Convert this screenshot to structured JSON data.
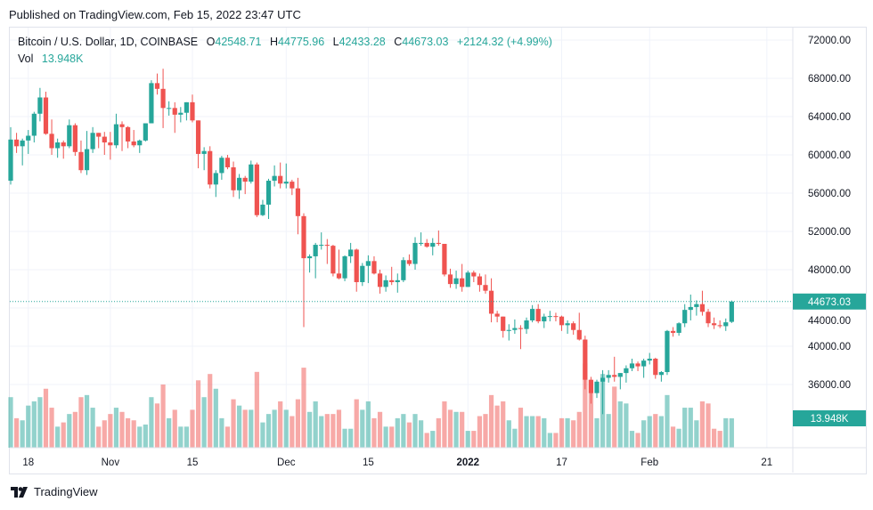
{
  "header": {
    "published": "Published on TradingView.com, Feb 15, 2022 23:47 UTC"
  },
  "legend": {
    "symbol": "Bitcoin / U.S. Dollar, 1D, COINBASE",
    "o_label": "O",
    "o": "42548.71",
    "h_label": "H",
    "h": "44775.96",
    "l_label": "L",
    "l": "42433.28",
    "c_label": "C",
    "c": "44673.03",
    "change": "+2124.32 (+4.99%)",
    "vol_label": "Vol",
    "vol": "13.948K"
  },
  "footer": {
    "brand": "TradingView"
  },
  "colors": {
    "up": "#26a69a",
    "down": "#ef5350",
    "grid": "#f0f3fa",
    "text": "#131722"
  },
  "chart_data": {
    "type": "candlestick",
    "title": "Bitcoin / U.S. Dollar, 1D, COINBASE",
    "start_date": "2021-10-15",
    "price_unit": "USD thousands",
    "volume_unit": "K",
    "columns": [
      "open",
      "high",
      "low",
      "close",
      "volume"
    ],
    "ylim": [
      30.5,
      74.5
    ],
    "y_ticks": [
      "72000.00",
      "68000.00",
      "64000.00",
      "60000.00",
      "56000.00",
      "52000.00",
      "48000.00",
      "44000.00",
      "40000.00",
      "36000.00"
    ],
    "x_ticks": [
      {
        "label": "18",
        "day": 3
      },
      {
        "label": "Nov",
        "day": 17
      },
      {
        "label": "15",
        "day": 31
      },
      {
        "label": "Dec",
        "day": 47
      },
      {
        "label": "15",
        "day": 61
      },
      {
        "label": "2022",
        "day": 78
      },
      {
        "label": "17",
        "day": 94
      },
      {
        "label": "Feb",
        "day": 109
      },
      {
        "label": "21",
        "day": 129
      }
    ],
    "last_price_label": "44673.03",
    "last_volume_label": "13.948K",
    "candles": [
      [
        57.3,
        62.9,
        56.9,
        61.6,
        24
      ],
      [
        61.6,
        62.3,
        60.2,
        60.9,
        14
      ],
      [
        60.9,
        61.7,
        58.9,
        61.5,
        13
      ],
      [
        61.5,
        62.6,
        60.1,
        62.0,
        20
      ],
      [
        62.0,
        64.5,
        61.3,
        64.3,
        22
      ],
      [
        64.3,
        67.0,
        63.5,
        66.0,
        24
      ],
      [
        66.0,
        66.6,
        62.1,
        62.2,
        28
      ],
      [
        62.2,
        63.7,
        60.0,
        60.7,
        19
      ],
      [
        60.7,
        61.7,
        59.7,
        61.3,
        10
      ],
      [
        61.3,
        61.5,
        59.6,
        60.9,
        12
      ],
      [
        60.9,
        63.7,
        60.7,
        63.1,
        16
      ],
      [
        63.1,
        63.3,
        59.9,
        60.3,
        17
      ],
      [
        60.3,
        61.5,
        58.1,
        58.4,
        24
      ],
      [
        58.4,
        62.5,
        57.9,
        60.6,
        25
      ],
      [
        60.6,
        62.9,
        60.2,
        62.3,
        19
      ],
      [
        62.3,
        62.3,
        60.7,
        61.9,
        10
      ],
      [
        61.9,
        62.4,
        60.0,
        61.3,
        13
      ],
      [
        61.3,
        62.4,
        59.5,
        61.0,
        16
      ],
      [
        61.0,
        64.3,
        60.7,
        63.2,
        19
      ],
      [
        63.2,
        63.5,
        60.4,
        62.9,
        17
      ],
      [
        62.9,
        63.0,
        60.7,
        61.4,
        14
      ],
      [
        61.4,
        62.6,
        60.8,
        61.0,
        13
      ],
      [
        61.0,
        61.6,
        60.2,
        61.5,
        10
      ],
      [
        61.5,
        63.3,
        61.4,
        63.3,
        11
      ],
      [
        63.3,
        67.8,
        63.3,
        67.5,
        24
      ],
      [
        67.5,
        68.5,
        66.3,
        66.9,
        21
      ],
      [
        66.9,
        69.0,
        62.8,
        64.9,
        30
      ],
      [
        64.9,
        65.6,
        64.1,
        64.9,
        14
      ],
      [
        64.9,
        65.5,
        62.3,
        64.2,
        18
      ],
      [
        64.2,
        65.0,
        63.4,
        64.4,
        10
      ],
      [
        64.4,
        65.5,
        63.6,
        65.5,
        10
      ],
      [
        65.5,
        66.3,
        63.4,
        63.6,
        18
      ],
      [
        63.6,
        63.6,
        58.6,
        60.1,
        32
      ],
      [
        60.1,
        60.8,
        58.4,
        60.4,
        24
      ],
      [
        60.4,
        60.9,
        56.5,
        56.9,
        35
      ],
      [
        56.9,
        58.4,
        55.6,
        58.1,
        28
      ],
      [
        58.1,
        59.9,
        57.4,
        59.7,
        14
      ],
      [
        59.7,
        60.0,
        58.5,
        58.7,
        10
      ],
      [
        58.7,
        59.3,
        55.6,
        56.3,
        23
      ],
      [
        56.3,
        58.0,
        55.4,
        57.6,
        20
      ],
      [
        57.6,
        57.8,
        55.9,
        57.2,
        18
      ],
      [
        57.2,
        59.4,
        57.0,
        59.0,
        18
      ],
      [
        59.0,
        59.2,
        53.5,
        53.7,
        36
      ],
      [
        53.7,
        55.3,
        53.6,
        54.8,
        12
      ],
      [
        54.8,
        57.5,
        53.3,
        57.3,
        16
      ],
      [
        57.3,
        58.9,
        56.7,
        57.8,
        18
      ],
      [
        57.8,
        59.2,
        56.5,
        57.0,
        22
      ],
      [
        57.0,
        59.1,
        56.5,
        57.2,
        18
      ],
      [
        57.2,
        57.4,
        55.8,
        56.5,
        15
      ],
      [
        56.5,
        57.6,
        51.7,
        53.6,
        23
      ],
      [
        53.6,
        53.9,
        42.0,
        49.2,
        38
      ],
      [
        49.2,
        49.6,
        47.7,
        49.4,
        17
      ],
      [
        49.4,
        50.8,
        47.1,
        50.6,
        22
      ],
      [
        50.6,
        51.9,
        50.1,
        50.6,
        15
      ],
      [
        50.6,
        51.2,
        48.6,
        50.5,
        16
      ],
      [
        50.5,
        50.6,
        47.3,
        47.6,
        16
      ],
      [
        47.6,
        50.1,
        47.0,
        47.1,
        18
      ],
      [
        47.1,
        49.5,
        46.8,
        49.4,
        9
      ],
      [
        49.4,
        50.8,
        48.7,
        50.1,
        9
      ],
      [
        50.1,
        50.2,
        45.7,
        46.7,
        23
      ],
      [
        46.7,
        48.7,
        46.3,
        48.4,
        18
      ],
      [
        48.4,
        49.5,
        46.6,
        48.9,
        22
      ],
      [
        48.9,
        49.4,
        47.5,
        47.6,
        14
      ],
      [
        47.6,
        48.0,
        45.5,
        46.2,
        17
      ],
      [
        46.2,
        47.4,
        45.7,
        46.9,
        10
      ],
      [
        46.9,
        48.3,
        46.4,
        46.7,
        10
      ],
      [
        46.7,
        47.6,
        45.6,
        46.9,
        14
      ],
      [
        46.9,
        49.3,
        46.7,
        49.0,
        16
      ],
      [
        49.0,
        49.6,
        48.4,
        48.6,
        12
      ],
      [
        48.6,
        51.4,
        48.0,
        50.8,
        16
      ],
      [
        50.8,
        51.9,
        50.5,
        50.8,
        13
      ],
      [
        50.8,
        51.2,
        50.3,
        50.4,
        7
      ],
      [
        50.4,
        51.3,
        49.5,
        50.8,
        8
      ],
      [
        50.8,
        52.1,
        50.5,
        50.7,
        14
      ],
      [
        50.7,
        50.7,
        47.3,
        47.5,
        22
      ],
      [
        47.5,
        48.1,
        46.1,
        46.5,
        18
      ],
      [
        46.5,
        47.9,
        46.0,
        47.1,
        17
      ],
      [
        47.1,
        48.6,
        45.7,
        46.2,
        17
      ],
      [
        46.2,
        47.9,
        46.2,
        47.7,
        8
      ],
      [
        47.7,
        47.9,
        46.7,
        47.3,
        8
      ],
      [
        47.3,
        47.6,
        45.7,
        46.4,
        15
      ],
      [
        46.4,
        47.5,
        45.5,
        45.8,
        16
      ],
      [
        45.8,
        47.1,
        42.5,
        43.4,
        25
      ],
      [
        43.4,
        43.7,
        42.5,
        43.1,
        20
      ],
      [
        43.1,
        43.1,
        40.9,
        41.6,
        22
      ],
      [
        41.6,
        42.3,
        40.6,
        41.7,
        13
      ],
      [
        41.7,
        42.8,
        41.3,
        41.9,
        9
      ],
      [
        41.9,
        42.2,
        39.7,
        41.8,
        19
      ],
      [
        41.8,
        43.0,
        41.3,
        42.7,
        15
      ],
      [
        42.7,
        44.3,
        42.5,
        43.9,
        15
      ],
      [
        43.9,
        44.4,
        42.4,
        42.6,
        15
      ],
      [
        42.6,
        43.4,
        41.9,
        43.1,
        14
      ],
      [
        43.1,
        43.7,
        42.6,
        43.15,
        7
      ],
      [
        43.15,
        43.5,
        42.6,
        43.1,
        7
      ],
      [
        43.1,
        43.2,
        41.6,
        42.2,
        14
      ],
      [
        42.2,
        42.7,
        41.3,
        42.4,
        14
      ],
      [
        42.4,
        42.6,
        41.2,
        41.7,
        13
      ],
      [
        41.7,
        43.5,
        40.6,
        40.7,
        17
      ],
      [
        40.7,
        41.1,
        35.5,
        36.5,
        40
      ],
      [
        36.5,
        36.8,
        34.0,
        35.1,
        32
      ],
      [
        35.1,
        36.5,
        34.6,
        36.3,
        14
      ],
      [
        36.3,
        37.5,
        32.9,
        36.7,
        35
      ],
      [
        36.7,
        37.5,
        36.2,
        37.0,
        16
      ],
      [
        37.0,
        38.9,
        36.3,
        36.8,
        29
      ],
      [
        36.8,
        37.2,
        35.5,
        37.2,
        22
      ],
      [
        37.2,
        38.0,
        36.2,
        37.7,
        21
      ],
      [
        37.7,
        38.7,
        37.4,
        38.2,
        8
      ],
      [
        38.2,
        38.4,
        37.4,
        37.9,
        7
      ],
      [
        37.9,
        38.7,
        36.7,
        38.5,
        13
      ],
      [
        38.5,
        39.3,
        38.1,
        38.7,
        15
      ],
      [
        38.7,
        38.8,
        36.6,
        37.0,
        16
      ],
      [
        37.0,
        37.4,
        36.3,
        37.3,
        15
      ],
      [
        37.3,
        41.7,
        37.0,
        41.6,
        25
      ],
      [
        41.6,
        42.0,
        41.0,
        41.4,
        10
      ],
      [
        41.4,
        42.5,
        41.1,
        42.4,
        9
      ],
      [
        42.4,
        44.4,
        42.0,
        43.8,
        19
      ],
      [
        43.8,
        45.4,
        42.7,
        44.1,
        19
      ],
      [
        44.1,
        44.8,
        43.2,
        44.4,
        13
      ],
      [
        44.4,
        45.8,
        43.2,
        43.6,
        22
      ],
      [
        43.6,
        43.9,
        42.0,
        42.4,
        21
      ],
      [
        42.4,
        43.0,
        41.8,
        42.2,
        9
      ],
      [
        42.2,
        42.7,
        41.9,
        42.1,
        8
      ],
      [
        42.1,
        42.9,
        41.6,
        42.5,
        14
      ],
      [
        42.55,
        44.78,
        42.43,
        44.67,
        13.948
      ]
    ]
  }
}
